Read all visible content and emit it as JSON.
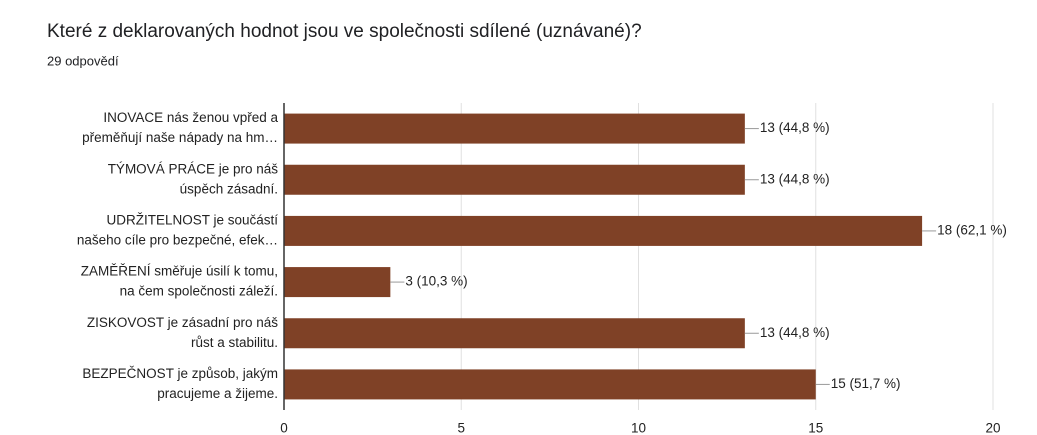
{
  "chart_data": {
    "type": "bar",
    "orientation": "horizontal",
    "title": "Které z deklarovaných hodnot jsou ve společnosti sdílené (uznávané)?",
    "subtitle": "29 odpovědí",
    "categories": [
      [
        "INOVACE nás ženou vpřed a",
        "přeměňují naše nápady na hm…"
      ],
      [
        "TÝMOVÁ PRÁCE je pro náš",
        "úspěch zásadní."
      ],
      [
        "UDRŽITELNOST je součástí",
        "našeho cíle pro bezpečné, efek…"
      ],
      [
        "ZAMĚŘENÍ směřuje úsilí k tomu,",
        "na čem společnosti záleží."
      ],
      [
        "ZISKOVOST je zásadní pro náš",
        "růst a stabilitu."
      ],
      [
        "BEZPEČNOST je způsob, jakým",
        "pracujeme a žijeme."
      ]
    ],
    "values": [
      13,
      13,
      18,
      3,
      13,
      15
    ],
    "value_labels": [
      "13 (44,8 %)",
      "13 (44,8 %)",
      "18 (62,1 %)",
      "3 (10,3 %)",
      "13 (44,8 %)",
      "15 (51,7 %)"
    ],
    "color": "#7f4126",
    "xlim": [
      0,
      20
    ],
    "xticks": [
      0,
      5,
      10,
      15,
      20
    ],
    "grid": true
  }
}
